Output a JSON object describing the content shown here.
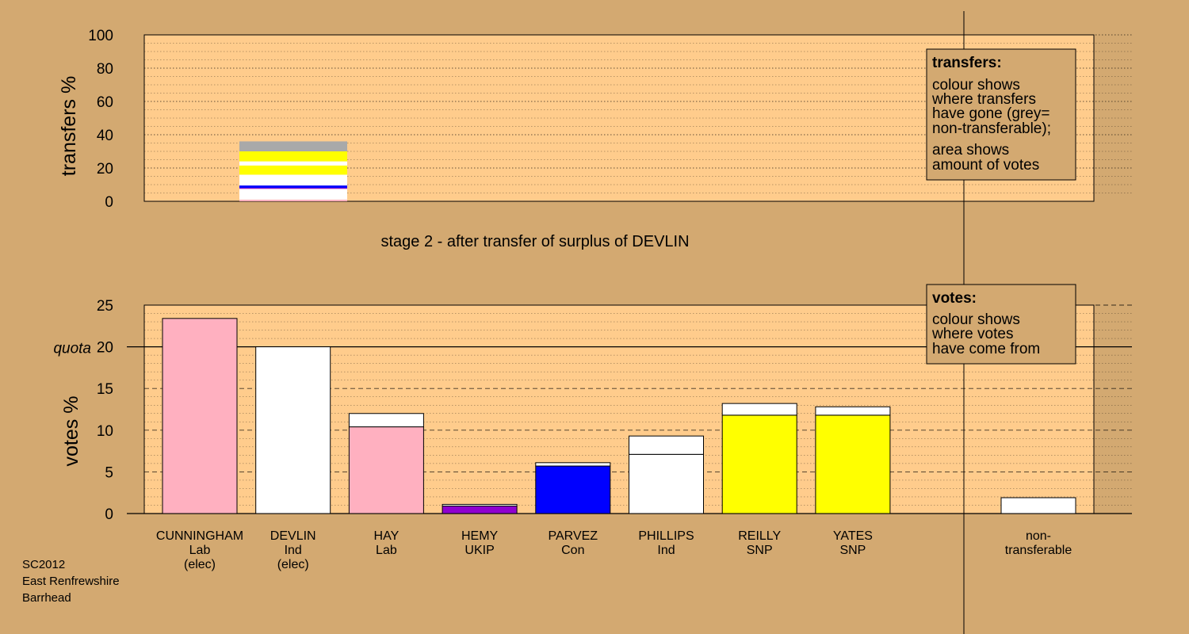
{
  "chart_data": [
    {
      "type": "bar",
      "stacked": true,
      "ylabel": "transfers %",
      "ylim": [
        0,
        100
      ],
      "yticks": [
        0,
        20,
        40,
        60,
        80,
        100
      ],
      "grid": true,
      "caption": "stage 2 - after transfer of surplus of DEVLIN",
      "transferred_from": "DEVLIN",
      "segments": [
        {
          "to": "CUNNINGHAM",
          "value": 1.0,
          "color": "#ffb0c0"
        },
        {
          "to": "HAY",
          "value": 6.5,
          "color": "#ffffff"
        },
        {
          "to": "HEMY",
          "value": 0.5,
          "color": "#9000d0"
        },
        {
          "to": "PARVEZ",
          "value": 1.5,
          "color": "#0000ff"
        },
        {
          "to": "PHILLIPS",
          "value": 6.5,
          "color": "#ffffff"
        },
        {
          "to": "REILLY",
          "value": 5.5,
          "color": "#ffff00"
        },
        {
          "to": "YATES",
          "value": 2.5,
          "color": "#ffffff"
        },
        {
          "to": "YATES",
          "value": 6.0,
          "color": "#ffff00"
        },
        {
          "to": "non-transferable",
          "value": 6.0,
          "color": "#a9a9a9"
        }
      ],
      "legend": {
        "title": "transfers:",
        "lines1": [
          "colour shows",
          "where transfers",
          "have gone (grey=",
          "non-transferable);"
        ],
        "lines2": [
          "area shows",
          "amount of votes"
        ]
      }
    },
    {
      "type": "bar",
      "stacked": true,
      "ylabel": "votes %",
      "ylim": [
        0,
        25
      ],
      "yticks": [
        0,
        5,
        10,
        15,
        20,
        25
      ],
      "quota": 20,
      "quota_label": "quota",
      "grid": true,
      "categories": [
        {
          "name": "CUNNINGHAM",
          "party": "Lab",
          "note": "(elec)",
          "stack": [
            {
              "value": 23.4,
              "color": "#ffb0c0"
            }
          ]
        },
        {
          "name": "DEVLIN",
          "party": "Ind",
          "note": "(elec)",
          "stack": [
            {
              "value": 20.0,
              "color": "#ffffff"
            }
          ]
        },
        {
          "name": "HAY",
          "party": "Lab",
          "note": "",
          "stack": [
            {
              "value": 10.4,
              "color": "#ffb0c0"
            },
            {
              "value": 1.6,
              "color": "#ffffff"
            }
          ]
        },
        {
          "name": "HEMY",
          "party": "UKIP",
          "note": "",
          "stack": [
            {
              "value": 0.9,
              "color": "#9000d0"
            },
            {
              "value": 0.2,
              "color": "#ffffff"
            }
          ]
        },
        {
          "name": "PARVEZ",
          "party": "Con",
          "note": "",
          "stack": [
            {
              "value": 5.7,
              "color": "#0000ff"
            },
            {
              "value": 0.4,
              "color": "#ffffff"
            }
          ]
        },
        {
          "name": "PHILLIPS",
          "party": "Ind",
          "note": "",
          "stack": [
            {
              "value": 7.1,
              "color": "#ffffff"
            },
            {
              "value": 2.2,
              "color": "#ffffff"
            }
          ]
        },
        {
          "name": "REILLY",
          "party": "SNP",
          "note": "",
          "stack": [
            {
              "value": 11.8,
              "color": "#ffff00"
            },
            {
              "value": 1.4,
              "color": "#ffffff"
            }
          ]
        },
        {
          "name": "YATES",
          "party": "SNP",
          "note": "",
          "stack": [
            {
              "value": 11.8,
              "color": "#ffff00"
            },
            {
              "value": 1.0,
              "color": "#ffffff"
            }
          ]
        }
      ],
      "nontransferable": {
        "label1": "non-",
        "label2": "transferable",
        "value": 1.9,
        "color": "#ffffff"
      },
      "legend": {
        "title": "votes:",
        "lines": [
          "colour shows",
          "where votes",
          "have come from"
        ]
      }
    }
  ],
  "source": {
    "line1": "SC2012",
    "line2": "East Renfrewshire",
    "line3": "Barrhead"
  }
}
